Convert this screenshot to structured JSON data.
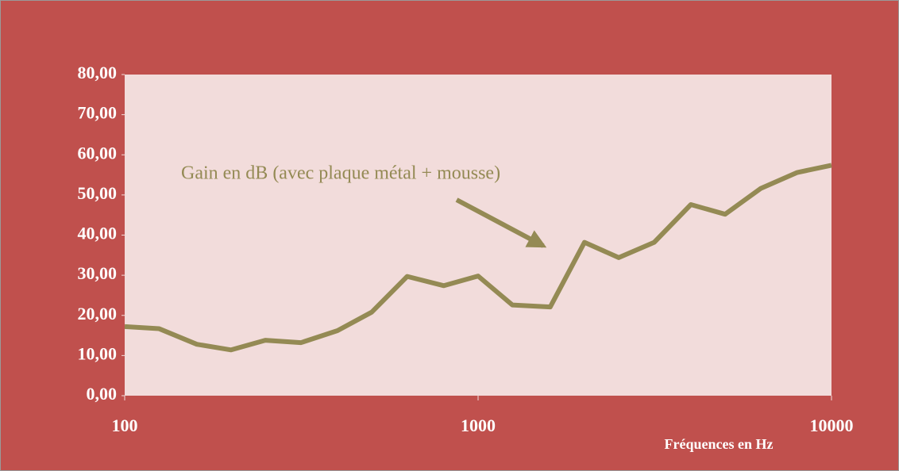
{
  "chart_data": {
    "type": "line",
    "annotation": "Gain en dB (avec plaque métal + mousse)",
    "xlabel": "Fréquences en Hz",
    "x": [
      100,
      125,
      160,
      200,
      250,
      315,
      400,
      500,
      630,
      800,
      1000,
      1250,
      1600,
      2000,
      2500,
      3150,
      4000,
      5000,
      6300,
      8000,
      10000
    ],
    "values": [
      17.2,
      16.7,
      12.8,
      11.4,
      13.8,
      13.2,
      16.2,
      20.8,
      29.7,
      27.4,
      29.8,
      22.6,
      22.1,
      38.2,
      34.4,
      38.2,
      47.6,
      45.2,
      51.6,
      55.6,
      57.4
    ],
    "color": "#948a54",
    "xscale": "log",
    "xlim": [
      100,
      10000
    ],
    "xticks": [
      100,
      1000,
      10000
    ],
    "ylim": [
      0,
      80
    ],
    "yticks": [
      {
        "value": 0,
        "label": "0,00"
      },
      {
        "value": 10,
        "label": "10,00"
      },
      {
        "value": 20,
        "label": "20,00"
      },
      {
        "value": 30,
        "label": "30,00"
      },
      {
        "value": 40,
        "label": "40,00"
      },
      {
        "value": 50,
        "label": "50,00"
      },
      {
        "value": 60,
        "label": "60,00"
      },
      {
        "value": 70,
        "label": "70,00"
      },
      {
        "value": 80,
        "label": "80,00"
      }
    ],
    "grid": false
  }
}
